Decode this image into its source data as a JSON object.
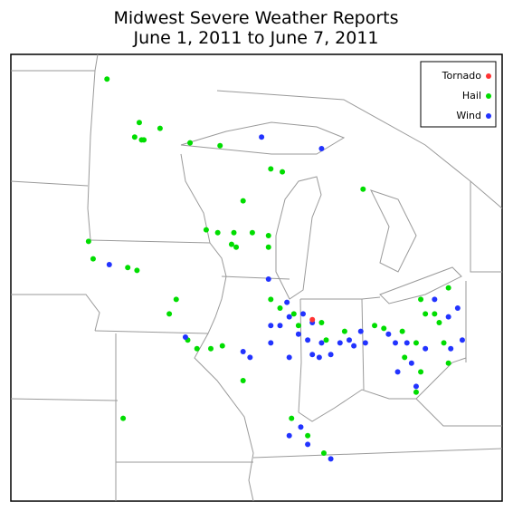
{
  "map": {
    "title": [
      "Midwest Severe Weather Reports",
      "June 1, 2011 to June 7, 2011"
    ],
    "series": [
      {
        "name": "Tornado",
        "color": "#ff3333",
        "lon": [
          -87.1
        ],
        "lat": [
          41.4
        ]
      },
      {
        "name": "Hail",
        "color": "#00dd00",
        "lon": [
          -96.0,
          -94.6,
          -94.4,
          -94.8,
          -93.7,
          -94.5,
          -92.4,
          -91.1,
          -88.9,
          -88.4,
          -90.1,
          -91.7,
          -91.2,
          -90.5,
          -89.7,
          -89.0,
          -90.6,
          -90.4,
          -89.0,
          -96.8,
          -96.6,
          -95.1,
          -94.7,
          -93.0,
          -93.3,
          -92.5,
          -92.1,
          -91.5,
          -91.0,
          -90.1,
          -95.3,
          -88.9,
          -88.5,
          -87.9,
          -87.7,
          -86.7,
          -86.5,
          -85.7,
          -84.9,
          -84.4,
          -84.0,
          -83.2,
          -82.4,
          -82.2,
          -81.8,
          -81.2,
          -81.6,
          -81.4,
          -82.6,
          -83.1,
          -82.4,
          -82.6,
          -81.2,
          -88.0,
          -86.6,
          -87.3
        ],
        "lat": [
          49.7,
          48.2,
          47.6,
          47.7,
          48.0,
          47.6,
          47.5,
          47.4,
          46.6,
          46.5,
          45.5,
          44.5,
          44.4,
          44.4,
          44.4,
          44.3,
          44.0,
          43.9,
          43.9,
          44.1,
          43.5,
          43.2,
          43.1,
          42.1,
          41.6,
          40.7,
          40.4,
          40.4,
          40.5,
          39.3,
          38.0,
          42.1,
          41.8,
          41.6,
          41.2,
          41.3,
          40.7,
          41.0,
          45.9,
          41.2,
          41.1,
          41.0,
          42.1,
          41.6,
          41.6,
          42.5,
          41.3,
          40.6,
          40.6,
          40.1,
          39.6,
          38.9,
          39.9,
          38.0,
          36.8,
          37.4
        ]
      },
      {
        "name": "Wind",
        "color": "#2233ff",
        "lon": [
          -89.3,
          -86.7,
          -89.0,
          -95.9,
          -92.6,
          -90.1,
          -89.8,
          -88.9,
          -88.2,
          -88.1,
          -87.5,
          -88.5,
          -87.7,
          -87.3,
          -86.8,
          -86.3,
          -85.9,
          -85.3,
          -84.8,
          -85.0,
          -85.5,
          -86.7,
          -88.9,
          -88.1,
          -87.1,
          -83.8,
          -83.5,
          -83.0,
          -82.8,
          -83.4,
          -82.2,
          -81.2,
          -80.8,
          -80.6,
          -81.1,
          -81.8,
          -82.6,
          -87.6,
          -87.3,
          -86.3,
          -88.1,
          -87.1
        ],
        "lat": [
          47.7,
          47.3,
          42.8,
          43.3,
          40.8,
          40.3,
          40.1,
          40.6,
          42.0,
          41.5,
          41.6,
          41.2,
          40.9,
          40.7,
          40.1,
          40.2,
          40.6,
          40.5,
          40.6,
          41.0,
          40.7,
          40.6,
          41.2,
          40.1,
          40.2,
          40.9,
          40.6,
          40.6,
          39.9,
          39.6,
          40.4,
          41.5,
          41.8,
          40.7,
          40.4,
          42.1,
          39.1,
          37.7,
          37.1,
          36.6,
          37.4,
          41.3
        ]
      }
    ]
  }
}
